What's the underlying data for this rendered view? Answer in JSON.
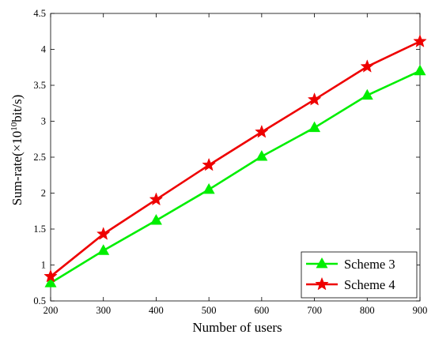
{
  "chart_data": {
    "type": "line",
    "title": "",
    "xlabel": "Number of users",
    "ylabel_main": "Sum-rate(×10",
    "ylabel_sup": "10",
    "ylabel_tail": "bit/s)",
    "x": [
      200,
      300,
      400,
      500,
      600,
      700,
      800,
      900
    ],
    "xlim": [
      200,
      900
    ],
    "ylim": [
      0.5,
      4.5
    ],
    "xticks": [
      "200",
      "300",
      "400",
      "500",
      "600",
      "700",
      "800",
      "900"
    ],
    "yticks": [
      "0.5",
      "1",
      "1.5",
      "2",
      "2.5",
      "3",
      "3.5",
      "4",
      "4.5"
    ],
    "grid": false,
    "legend_position": "bottom-right",
    "series": [
      {
        "name": "Scheme 3",
        "color": "#00ee00",
        "marker": "triangle",
        "values": [
          0.75,
          1.2,
          1.62,
          2.05,
          2.51,
          2.91,
          3.36,
          3.7
        ]
      },
      {
        "name": "Scheme 4",
        "color": "#ee0000",
        "marker": "star",
        "values": [
          0.84,
          1.43,
          1.91,
          2.39,
          2.85,
          3.3,
          3.76,
          4.11
        ]
      }
    ]
  }
}
